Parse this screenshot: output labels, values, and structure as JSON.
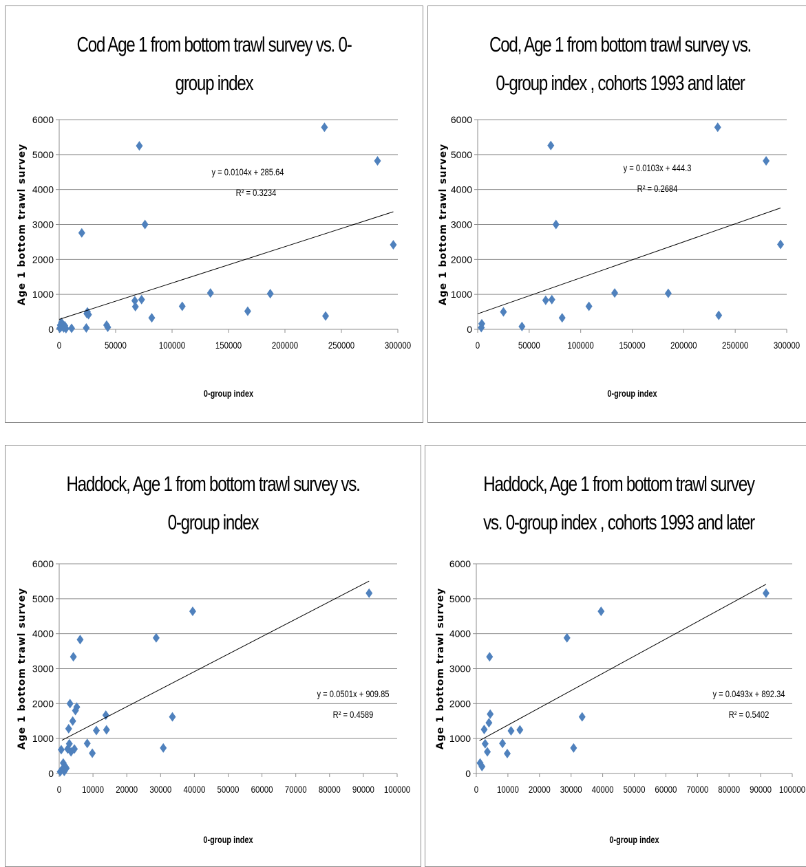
{
  "chart_data": [
    {
      "type": "scatter",
      "title": "Cod Age 1 from bottom trawl survey vs.  0-group index",
      "xlabel": "0-group index",
      "ylabel": "Age 1 bottom trawl survey",
      "xlim": [
        0,
        300000
      ],
      "ylim": [
        0,
        6000
      ],
      "x_ticks": [
        "0",
        "50000",
        "100000",
        "150000",
        "200000",
        "250000",
        "300000"
      ],
      "y_ticks": [
        "0",
        "1000",
        "2000",
        "3000",
        "4000",
        "5000",
        "6000"
      ],
      "grid": "horizontal",
      "marker_color": "#4f81bd",
      "points": [
        [
          500,
          30
        ],
        [
          1000,
          120
        ],
        [
          1500,
          60
        ],
        [
          2000,
          200
        ],
        [
          2500,
          90
        ],
        [
          3000,
          150
        ],
        [
          4000,
          40
        ],
        [
          5000,
          100
        ],
        [
          6000,
          20
        ],
        [
          11000,
          30
        ],
        [
          20000,
          2760
        ],
        [
          24000,
          40
        ],
        [
          24500,
          450
        ],
        [
          25000,
          500
        ],
        [
          26000,
          420
        ],
        [
          42000,
          120
        ],
        [
          43000,
          60
        ],
        [
          67000,
          820
        ],
        [
          67500,
          650
        ],
        [
          71000,
          5250
        ],
        [
          73000,
          850
        ],
        [
          76000,
          3000
        ],
        [
          82000,
          330
        ],
        [
          109000,
          660
        ],
        [
          134000,
          1040
        ],
        [
          167000,
          520
        ],
        [
          187000,
          1020
        ],
        [
          235000,
          5780
        ],
        [
          236000,
          380
        ],
        [
          282000,
          4820
        ],
        [
          296000,
          2420
        ]
      ],
      "trendline": {
        "slope": 0.0104,
        "intercept": 285.64,
        "x_range": [
          0,
          296000
        ]
      },
      "equation": "y = 0.0104x + 285.64",
      "r2": "R² = 0.3234"
    },
    {
      "type": "scatter",
      "title": "Cod, Age 1 from bottom trawl survey vs. 0-group index , cohorts 1993 and later",
      "xlabel": "0-group index",
      "ylabel": "Age 1 bottom trawl survey",
      "xlim": [
        0,
        300000
      ],
      "ylim": [
        0,
        6000
      ],
      "x_ticks": [
        "0",
        "50000",
        "100000",
        "150000",
        "200000",
        "250000",
        "300000"
      ],
      "y_ticks": [
        "0",
        "1000",
        "2000",
        "3000",
        "4000",
        "5000",
        "6000"
      ],
      "grid": "horizontal",
      "marker_color": "#4f81bd",
      "points": [
        [
          3500,
          50
        ],
        [
          4000,
          160
        ],
        [
          25000,
          500
        ],
        [
          43000,
          80
        ],
        [
          66000,
          830
        ],
        [
          71000,
          5260
        ],
        [
          72000,
          850
        ],
        [
          76000,
          3000
        ],
        [
          82000,
          330
        ],
        [
          108000,
          660
        ],
        [
          133000,
          1040
        ],
        [
          185000,
          1030
        ],
        [
          233000,
          5780
        ],
        [
          234000,
          400
        ],
        [
          280000,
          4820
        ],
        [
          294000,
          2430
        ]
      ],
      "trendline": {
        "slope": 0.0103,
        "intercept": 444.3,
        "x_range": [
          0,
          294000
        ]
      },
      "equation": "y = 0.0103x + 444.3",
      "r2": "R² = 0.2684"
    },
    {
      "type": "scatter",
      "title": "Haddock, Age 1 from bottom trawl survey vs.  0-group index",
      "xlabel": "0-group index",
      "ylabel": "Age 1 bottom trawl survey",
      "xlim": [
        0,
        100000
      ],
      "ylim": [
        0,
        6000
      ],
      "x_ticks": [
        "0",
        "10000",
        "20000",
        "30000",
        "40000",
        "50000",
        "60000",
        "70000",
        "80000",
        "90000",
        "100000"
      ],
      "y_ticks": [
        "0",
        "1000",
        "2000",
        "3000",
        "4000",
        "5000",
        "6000"
      ],
      "grid": "horizontal",
      "marker_color": "#4f81bd",
      "points": [
        [
          300,
          50
        ],
        [
          600,
          680
        ],
        [
          900,
          120
        ],
        [
          1200,
          300
        ],
        [
          1500,
          60
        ],
        [
          1800,
          200
        ],
        [
          2100,
          150
        ],
        [
          2500,
          700
        ],
        [
          2800,
          1280
        ],
        [
          3000,
          850
        ],
        [
          3200,
          2000
        ],
        [
          3500,
          620
        ],
        [
          4000,
          1500
        ],
        [
          4200,
          3340
        ],
        [
          4500,
          700
        ],
        [
          4800,
          1800
        ],
        [
          5200,
          1900
        ],
        [
          6200,
          3830
        ],
        [
          8300,
          860
        ],
        [
          9800,
          580
        ],
        [
          11000,
          1230
        ],
        [
          13800,
          1670
        ],
        [
          14000,
          1250
        ],
        [
          28700,
          3880
        ],
        [
          30800,
          730
        ],
        [
          33500,
          1620
        ],
        [
          39500,
          4640
        ],
        [
          91700,
          5160
        ]
      ],
      "trendline": {
        "slope": 0.0501,
        "intercept": 909.85,
        "x_range": [
          800,
          91700
        ]
      },
      "equation": "y = 0.0501x + 909.85",
      "r2": "R² = 0.4589"
    },
    {
      "type": "scatter",
      "title": "Haddock, Age 1 from bottom trawl survey vs. 0-group index , cohorts 1993 and later",
      "xlabel": "0-group index",
      "ylabel": "Age 1 bottom trawl survey",
      "xlim": [
        0,
        100000
      ],
      "ylim": [
        0,
        6000
      ],
      "x_ticks": [
        "0",
        "10000",
        "20000",
        "30000",
        "40000",
        "50000",
        "60000",
        "70000",
        "80000",
        "90000",
        "100000"
      ],
      "y_ticks": [
        "0",
        "1000",
        "2000",
        "3000",
        "4000",
        "5000",
        "6000"
      ],
      "grid": "horizontal",
      "marker_color": "#4f81bd",
      "points": [
        [
          1200,
          300
        ],
        [
          1800,
          200
        ],
        [
          2500,
          1260
        ],
        [
          2800,
          850
        ],
        [
          3500,
          620
        ],
        [
          4000,
          1450
        ],
        [
          4200,
          3340
        ],
        [
          4400,
          1700
        ],
        [
          8300,
          860
        ],
        [
          9800,
          570
        ],
        [
          11000,
          1220
        ],
        [
          13800,
          1250
        ],
        [
          28700,
          3880
        ],
        [
          30800,
          730
        ],
        [
          33500,
          1620
        ],
        [
          39500,
          4640
        ],
        [
          91700,
          5160
        ]
      ],
      "trendline": {
        "slope": 0.0493,
        "intercept": 892.34,
        "x_range": [
          1000,
          91700
        ]
      },
      "equation": "y = 0.0493x + 892.34",
      "r2": "R² = 0.5402"
    }
  ]
}
